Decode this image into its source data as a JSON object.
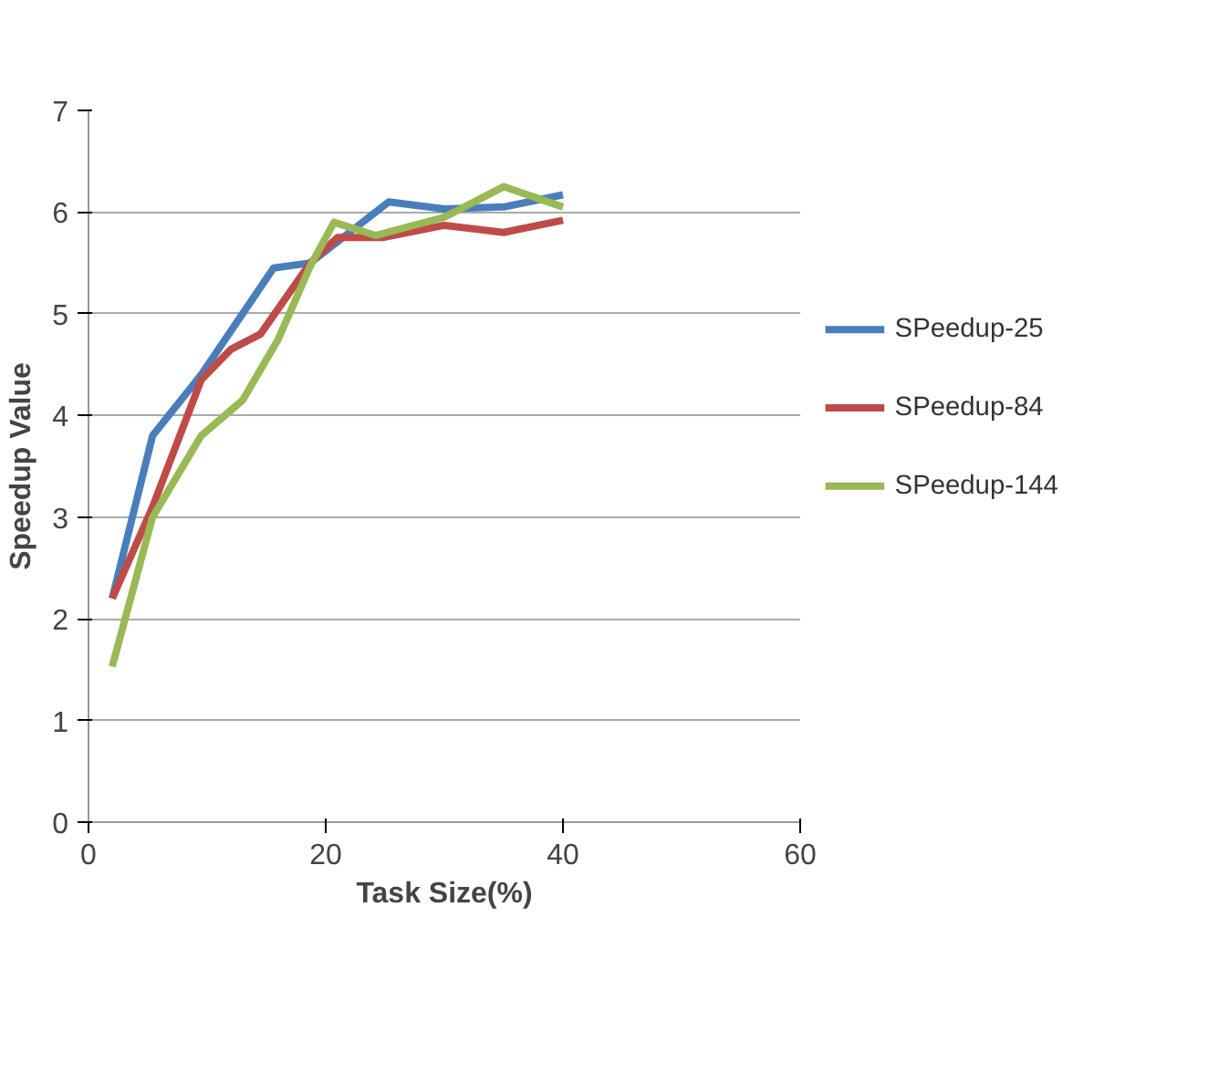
{
  "chart_data": {
    "type": "line",
    "xlabel": "Task Size(%)",
    "ylabel": "Speedup Value",
    "xlim": [
      0,
      60
    ],
    "xticks": [
      0,
      20,
      40,
      60
    ],
    "ylim": [
      0,
      7
    ],
    "yticks": [
      0,
      1,
      2,
      3,
      4,
      5,
      6,
      7
    ],
    "grid": "y",
    "legend": "right",
    "line_style": "solid",
    "series": [
      {
        "name": "SPeedup-25",
        "color": "#4a7ebb",
        "x": [
          2,
          5.4,
          9.5,
          15.6,
          18.7,
          25.3,
          30,
          35,
          40
        ],
        "values": [
          2.2,
          3.8,
          4.4,
          5.45,
          5.5,
          6.1,
          6.03,
          6.05,
          6.17
        ]
      },
      {
        "name": "SPeedup-84",
        "color": "#be4b48",
        "x": [
          2,
          5.4,
          9.5,
          12,
          14.5,
          18.7,
          21,
          24.8,
          30,
          35,
          40
        ],
        "values": [
          2.2,
          3.1,
          4.35,
          4.65,
          4.8,
          5.5,
          5.75,
          5.75,
          5.87,
          5.8,
          5.92
        ]
      },
      {
        "name": "SPeedup-144",
        "color": "#98b954",
        "x": [
          2,
          5.4,
          9.5,
          13,
          16,
          18.7,
          20.7,
          24.2,
          30,
          35,
          40
        ],
        "values": [
          1.53,
          3.0,
          3.8,
          4.15,
          4.75,
          5.47,
          5.9,
          5.77,
          5.95,
          6.25,
          6.05
        ]
      }
    ]
  }
}
